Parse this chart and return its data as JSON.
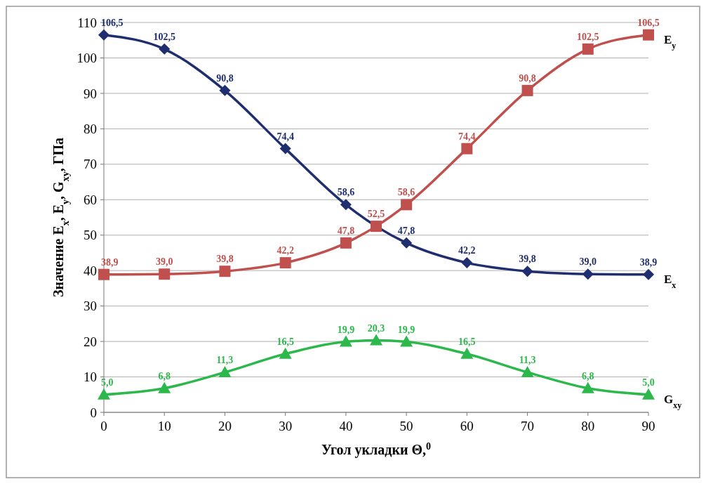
{
  "chart_data": {
    "type": "line",
    "xlabel": "Угол укладки Θ,$^{0}$",
    "ylabel": "Значение E$_{x}$, E$_{y}$, G$_{xy}$, ГПа",
    "x": [
      0,
      10,
      20,
      30,
      40,
      45,
      50,
      60,
      70,
      80,
      90
    ],
    "xlim": [
      0,
      90
    ],
    "xticks": [
      0,
      10,
      20,
      30,
      40,
      50,
      60,
      70,
      80,
      90
    ],
    "ylim": [
      0,
      110
    ],
    "yticks": [
      0,
      10,
      20,
      30,
      40,
      50,
      60,
      70,
      80,
      90,
      100,
      110
    ],
    "grid": "y",
    "series": [
      {
        "name": "E$_{x}$",
        "color": "#1f2e6e",
        "marker": "diamond",
        "values": [
          106.5,
          102.5,
          90.8,
          74.4,
          58.6,
          52.5,
          47.8,
          42.2,
          39.8,
          39.0,
          38.9
        ],
        "value_labels": [
          "106,5",
          "102,5",
          "90,8",
          "74,4",
          "58,6",
          null,
          "47,8",
          "42,2",
          "39,8",
          "39,0",
          "38,9"
        ]
      },
      {
        "name": "E$_{y}$",
        "color": "#c0504d",
        "marker": "square",
        "values": [
          38.9,
          39.0,
          39.8,
          42.2,
          47.8,
          52.5,
          58.6,
          74.4,
          90.8,
          102.5,
          106.5
        ],
        "value_labels": [
          "38,9",
          "39,0",
          "39,8",
          "42,2",
          "47,8",
          "52,5",
          "58,6",
          "74,4",
          "90,8",
          "102,5",
          "106,5"
        ]
      },
      {
        "name": "G$_{xy}$",
        "color": "#2db84c",
        "marker": "triangle",
        "values": [
          5.0,
          6.8,
          11.3,
          16.5,
          19.9,
          20.3,
          19.9,
          16.5,
          11.3,
          6.8,
          5.0
        ],
        "value_labels": [
          "5,0",
          "6,8",
          "11,3",
          "16,5",
          "19,9",
          "20,3",
          "19,9",
          "16,5",
          "11,3",
          "6,8",
          "5,0"
        ]
      }
    ]
  }
}
